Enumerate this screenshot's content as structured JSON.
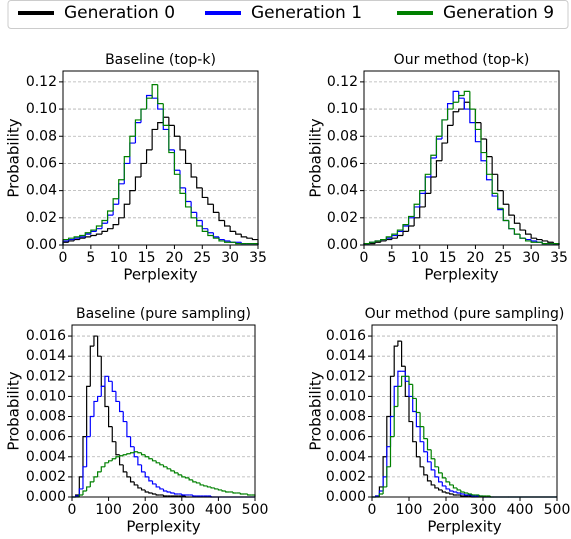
{
  "chart_data": [
    {
      "type": "histogram",
      "title": "Baseline (top-k)",
      "xlabel": "Perplexity",
      "ylabel": "Probability",
      "bins": [
        0,
        1,
        2,
        3,
        4,
        5,
        6,
        7,
        8,
        9,
        10,
        11,
        12,
        13,
        14,
        15,
        16,
        17,
        18,
        19,
        20,
        21,
        22,
        23,
        24,
        25,
        26,
        27,
        28,
        29,
        30,
        31,
        32,
        33,
        34,
        35
      ],
      "series": [
        {
          "name": "Generation 0",
          "color": "#000000",
          "values": [
            0.002,
            0.003,
            0.004,
            0.005,
            0.006,
            0.007,
            0.008,
            0.01,
            0.012,
            0.015,
            0.02,
            0.03,
            0.04,
            0.05,
            0.06,
            0.07,
            0.085,
            0.09,
            0.094,
            0.088,
            0.08,
            0.07,
            0.06,
            0.05,
            0.042,
            0.035,
            0.03,
            0.024,
            0.018,
            0.014,
            0.01,
            0.008,
            0.006,
            0.005,
            0.004
          ]
        },
        {
          "name": "Generation 1",
          "color": "#0000ff",
          "values": [
            0.003,
            0.004,
            0.005,
            0.006,
            0.008,
            0.01,
            0.012,
            0.016,
            0.022,
            0.03,
            0.045,
            0.06,
            0.075,
            0.09,
            0.1,
            0.11,
            0.108,
            0.1,
            0.085,
            0.07,
            0.055,
            0.042,
            0.032,
            0.024,
            0.018,
            0.012,
            0.009,
            0.006,
            0.004,
            0.003,
            0.002,
            0.002,
            0.001,
            0.001,
            0.001
          ]
        },
        {
          "name": "Generation 9",
          "color": "#008000",
          "values": [
            0.004,
            0.005,
            0.006,
            0.007,
            0.009,
            0.011,
            0.014,
            0.018,
            0.025,
            0.034,
            0.048,
            0.065,
            0.08,
            0.092,
            0.1,
            0.108,
            0.118,
            0.104,
            0.088,
            0.068,
            0.052,
            0.038,
            0.028,
            0.02,
            0.014,
            0.01,
            0.007,
            0.005,
            0.003,
            0.002,
            0.002,
            0.001,
            0.001,
            0.001,
            0.001
          ]
        }
      ],
      "xlim": [
        0,
        35
      ],
      "xticks": [
        0,
        5,
        10,
        15,
        20,
        25,
        30,
        35
      ],
      "ylim": [
        0,
        0.128
      ],
      "yticks": [
        {
          "value": 0,
          "label": "0.00"
        },
        {
          "value": 0.02,
          "label": "0.02"
        },
        {
          "value": 0.04,
          "label": "0.04"
        },
        {
          "value": 0.06,
          "label": "0.06"
        },
        {
          "value": 0.08,
          "label": "0.08"
        },
        {
          "value": 0.1,
          "label": "0.10"
        },
        {
          "value": 0.12,
          "label": "0.12"
        }
      ],
      "grid": "y"
    },
    {
      "type": "histogram",
      "title": "Our method (top-k)",
      "xlabel": "Perplexity",
      "ylabel": "Probability",
      "bins": [
        0,
        1,
        2,
        3,
        4,
        5,
        6,
        7,
        8,
        9,
        10,
        11,
        12,
        13,
        14,
        15,
        16,
        17,
        18,
        19,
        20,
        21,
        22,
        23,
        24,
        25,
        26,
        27,
        28,
        29,
        30,
        31,
        32,
        33,
        34,
        35
      ],
      "series": [
        {
          "name": "Generation 0",
          "color": "#000000",
          "values": [
            0.001,
            0.001,
            0.002,
            0.003,
            0.004,
            0.005,
            0.007,
            0.01,
            0.014,
            0.02,
            0.028,
            0.038,
            0.05,
            0.062,
            0.075,
            0.088,
            0.098,
            0.1,
            0.105,
            0.1,
            0.09,
            0.078,
            0.065,
            0.052,
            0.04,
            0.03,
            0.022,
            0.016,
            0.011,
            0.008,
            0.005,
            0.004,
            0.003,
            0.002,
            0.001
          ]
        },
        {
          "name": "Generation 1",
          "color": "#0000ff",
          "values": [
            0.001,
            0.002,
            0.003,
            0.004,
            0.005,
            0.007,
            0.01,
            0.014,
            0.02,
            0.028,
            0.038,
            0.05,
            0.064,
            0.078,
            0.092,
            0.104,
            0.113,
            0.108,
            0.1,
            0.09,
            0.076,
            0.062,
            0.048,
            0.036,
            0.026,
            0.018,
            0.012,
            0.008,
            0.005,
            0.004,
            0.003,
            0.002,
            0.001,
            0.001,
            0.001
          ]
        },
        {
          "name": "Generation 9",
          "color": "#008000",
          "values": [
            0.001,
            0.002,
            0.003,
            0.004,
            0.006,
            0.008,
            0.011,
            0.015,
            0.021,
            0.03,
            0.04,
            0.052,
            0.066,
            0.08,
            0.092,
            0.1,
            0.105,
            0.11,
            0.113,
            0.1,
            0.085,
            0.068,
            0.052,
            0.038,
            0.027,
            0.018,
            0.012,
            0.008,
            0.005,
            0.003,
            0.002,
            0.002,
            0.001,
            0.001,
            0.001
          ]
        }
      ],
      "xlim": [
        0,
        35
      ],
      "xticks": [
        0,
        5,
        10,
        15,
        20,
        25,
        30,
        35
      ],
      "ylim": [
        0,
        0.128
      ],
      "yticks": [
        {
          "value": 0,
          "label": "0.00"
        },
        {
          "value": 0.02,
          "label": "0.02"
        },
        {
          "value": 0.04,
          "label": "0.04"
        },
        {
          "value": 0.06,
          "label": "0.06"
        },
        {
          "value": 0.08,
          "label": "0.08"
        },
        {
          "value": 0.1,
          "label": "0.10"
        },
        {
          "value": 0.12,
          "label": "0.12"
        }
      ],
      "grid": "y"
    },
    {
      "type": "histogram",
      "title": "Baseline (pure sampling)",
      "xlabel": "Perplexity",
      "ylabel": "Probability",
      "bins": [
        0,
        10,
        20,
        30,
        40,
        50,
        60,
        70,
        80,
        90,
        100,
        110,
        120,
        130,
        140,
        150,
        160,
        170,
        180,
        190,
        200,
        210,
        220,
        230,
        240,
        250,
        260,
        270,
        280,
        290,
        300,
        310,
        320,
        330,
        340,
        350,
        360,
        370,
        380,
        390,
        400,
        410,
        420,
        430,
        440,
        450,
        460,
        470,
        480,
        490,
        500
      ],
      "series": [
        {
          "name": "Generation 0",
          "color": "#000000",
          "values": [
            0,
            0.0002,
            0.002,
            0.006,
            0.011,
            0.015,
            0.016,
            0.014,
            0.011,
            0.009,
            0.007,
            0.0055,
            0.0042,
            0.0032,
            0.0025,
            0.002,
            0.0015,
            0.0012,
            0.0009,
            0.0007,
            0.0005,
            0.0004,
            0.0003,
            0.0002,
            0.0002,
            0.0001,
            0.0001,
            0.0001,
            0.0001,
            0.0001,
            0.0001,
            0,
            0,
            0,
            0,
            0,
            0,
            0,
            0,
            0,
            0,
            0,
            0,
            0,
            0,
            0,
            0,
            0,
            0,
            0
          ]
        },
        {
          "name": "Generation 1",
          "color": "#0000ff",
          "values": [
            0,
            0.0001,
            0.0008,
            0.003,
            0.006,
            0.008,
            0.0095,
            0.01,
            0.011,
            0.012,
            0.0115,
            0.0105,
            0.0095,
            0.0085,
            0.0075,
            0.006,
            0.005,
            0.004,
            0.0032,
            0.0025,
            0.002,
            0.0016,
            0.0013,
            0.001,
            0.0008,
            0.0006,
            0.0005,
            0.0004,
            0.0003,
            0.0003,
            0.0002,
            0.0002,
            0.0002,
            0.0001,
            0.0001,
            0.0001,
            0.0001,
            0.0001,
            0,
            0,
            0,
            0,
            0,
            0,
            0,
            0,
            0,
            0,
            0,
            0
          ]
        },
        {
          "name": "Generation 9",
          "color": "#008000",
          "values": [
            0,
            0,
            0.0002,
            0.0006,
            0.001,
            0.0015,
            0.002,
            0.0025,
            0.003,
            0.0034,
            0.0036,
            0.0038,
            0.004,
            0.0041,
            0.0042,
            0.0043,
            0.0044,
            0.0045,
            0.0044,
            0.0042,
            0.004,
            0.0038,
            0.0036,
            0.0034,
            0.0032,
            0.003,
            0.0028,
            0.0026,
            0.0024,
            0.0022,
            0.002,
            0.0019,
            0.0017,
            0.0015,
            0.0014,
            0.0012,
            0.0011,
            0.001,
            0.0009,
            0.0008,
            0.0007,
            0.0006,
            0.0005,
            0.0005,
            0.0004,
            0.0004,
            0.0003,
            0.0003,
            0.0002,
            0.0002
          ]
        }
      ],
      "xlim": [
        0,
        500
      ],
      "xticks": [
        0,
        100,
        200,
        300,
        400,
        500
      ],
      "ylim": [
        0,
        0.0171
      ],
      "yticks": [
        {
          "value": 0,
          "label": "0.000"
        },
        {
          "value": 0.002,
          "label": "0.002"
        },
        {
          "value": 0.004,
          "label": "0.004"
        },
        {
          "value": 0.006,
          "label": "0.006"
        },
        {
          "value": 0.008,
          "label": "0.008"
        },
        {
          "value": 0.01,
          "label": "0.010"
        },
        {
          "value": 0.012,
          "label": "0.012"
        },
        {
          "value": 0.014,
          "label": "0.014"
        },
        {
          "value": 0.016,
          "label": "0.016"
        }
      ],
      "grid": "y"
    },
    {
      "type": "histogram",
      "title": "Our method (pure sampling)",
      "xlabel": "Perplexity",
      "ylabel": "Probability",
      "bins": [
        0,
        10,
        20,
        30,
        40,
        50,
        60,
        70,
        80,
        90,
        100,
        110,
        120,
        130,
        140,
        150,
        160,
        170,
        180,
        190,
        200,
        210,
        220,
        230,
        240,
        250,
        260,
        270,
        280,
        290,
        300,
        310,
        320,
        330,
        340,
        350,
        360,
        370,
        380,
        390,
        400,
        410,
        420,
        430,
        440,
        450,
        460,
        470,
        480,
        490,
        500
      ],
      "series": [
        {
          "name": "Generation 0",
          "color": "#000000",
          "values": [
            0,
            0.0001,
            0.001,
            0.004,
            0.008,
            0.012,
            0.015,
            0.0155,
            0.013,
            0.01,
            0.0075,
            0.0055,
            0.004,
            0.003,
            0.0022,
            0.0016,
            0.0012,
            0.0009,
            0.0007,
            0.0005,
            0.0004,
            0.0003,
            0.0002,
            0.0002,
            0.0001,
            0.0001,
            0.0001,
            0,
            0,
            0,
            0,
            0,
            0,
            0,
            0,
            0,
            0,
            0,
            0,
            0,
            0,
            0,
            0,
            0,
            0,
            0,
            0,
            0,
            0,
            0
          ]
        },
        {
          "name": "Generation 1",
          "color": "#0000ff",
          "values": [
            0,
            0.0001,
            0.0006,
            0.002,
            0.005,
            0.008,
            0.011,
            0.0125,
            0.0125,
            0.0115,
            0.01,
            0.0085,
            0.007,
            0.0055,
            0.0045,
            0.0035,
            0.0027,
            0.002,
            0.0015,
            0.0011,
            0.0008,
            0.0006,
            0.0005,
            0.0004,
            0.0003,
            0.0002,
            0.0002,
            0.0001,
            0.0001,
            0.0001,
            0,
            0,
            0,
            0,
            0,
            0,
            0,
            0,
            0,
            0,
            0,
            0,
            0,
            0,
            0,
            0,
            0,
            0,
            0,
            0
          ]
        },
        {
          "name": "Generation 9",
          "color": "#008000",
          "values": [
            0,
            0,
            0.0003,
            0.001,
            0.003,
            0.006,
            0.009,
            0.011,
            0.012,
            0.012,
            0.0112,
            0.0098,
            0.0084,
            0.007,
            0.0058,
            0.0047,
            0.0038,
            0.003,
            0.0024,
            0.0019,
            0.0015,
            0.0012,
            0.0009,
            0.0007,
            0.0005,
            0.0004,
            0.0003,
            0.0002,
            0.0002,
            0.0001,
            0.0001,
            0.0001,
            0,
            0,
            0,
            0,
            0,
            0,
            0,
            0,
            0,
            0,
            0,
            0,
            0,
            0,
            0,
            0,
            0,
            0,
            0
          ]
        }
      ],
      "xlim": [
        0,
        500
      ],
      "xticks": [
        0,
        100,
        200,
        300,
        400,
        500
      ],
      "ylim": [
        0,
        0.0171
      ],
      "yticks": [
        {
          "value": 0,
          "label": "0.000"
        },
        {
          "value": 0.002,
          "label": "0.002"
        },
        {
          "value": 0.004,
          "label": "0.004"
        },
        {
          "value": 0.006,
          "label": "0.006"
        },
        {
          "value": 0.008,
          "label": "0.008"
        },
        {
          "value": 0.01,
          "label": "0.010"
        },
        {
          "value": 0.012,
          "label": "0.012"
        },
        {
          "value": 0.014,
          "label": "0.014"
        },
        {
          "value": 0.016,
          "label": "0.016"
        }
      ],
      "grid": "y"
    }
  ]
}
